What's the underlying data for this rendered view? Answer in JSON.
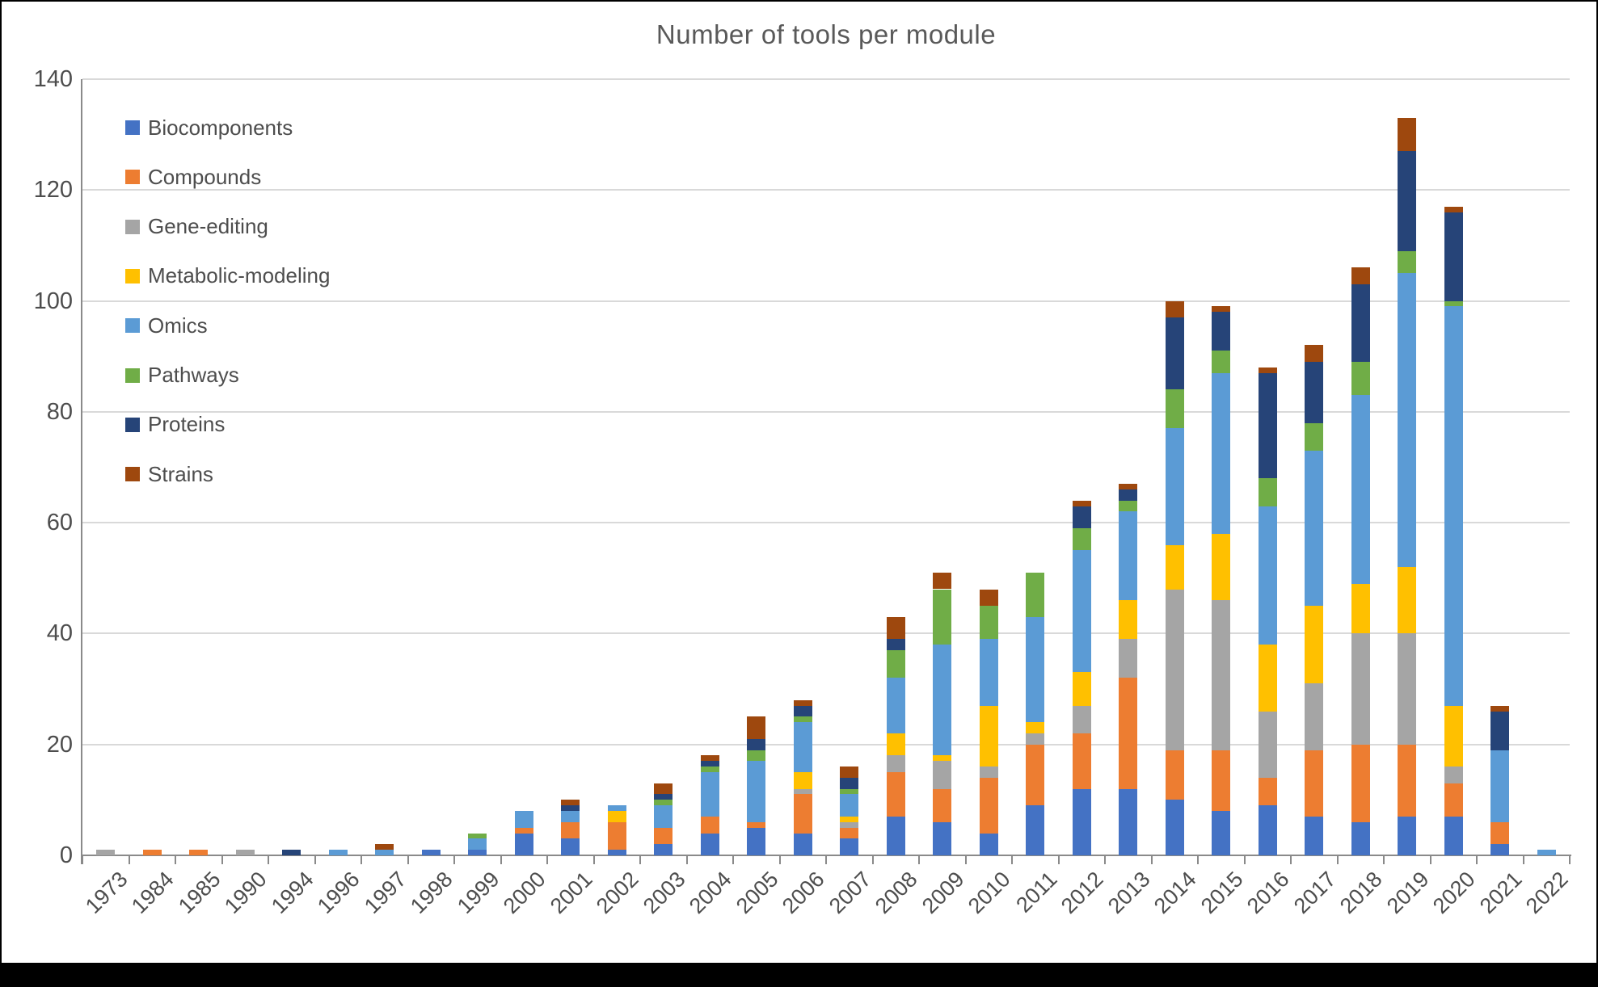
{
  "chart_data": {
    "type": "bar",
    "stacked": true,
    "title": "Number of tools per module",
    "categories": [
      "1973",
      "1984",
      "1985",
      "1990",
      "1994",
      "1996",
      "1997",
      "1998",
      "1999",
      "2000",
      "2001",
      "2002",
      "2003",
      "2004",
      "2005",
      "2006",
      "2007",
      "2008",
      "2009",
      "2010",
      "2011",
      "2012",
      "2013",
      "2014",
      "2015",
      "2016",
      "2017",
      "2018",
      "2019",
      "2020",
      "2021",
      "2022"
    ],
    "series": [
      {
        "name": "Biocomponents",
        "color": "#4472C4",
        "values": [
          0,
          0,
          0,
          0,
          0,
          0,
          0,
          1,
          1,
          4,
          3,
          1,
          2,
          4,
          5,
          4,
          3,
          7,
          6,
          4,
          9,
          12,
          12,
          10,
          8,
          9,
          7,
          6,
          7,
          7,
          2,
          0
        ]
      },
      {
        "name": "Compounds",
        "color": "#ED7D31",
        "values": [
          0,
          1,
          1,
          0,
          0,
          0,
          0,
          0,
          0,
          1,
          3,
          5,
          3,
          3,
          1,
          7,
          2,
          8,
          6,
          10,
          11,
          10,
          20,
          9,
          11,
          5,
          12,
          14,
          13,
          6,
          4,
          0
        ]
      },
      {
        "name": "Gene-editing",
        "color": "#A5A5A5",
        "values": [
          1,
          0,
          0,
          1,
          0,
          0,
          0,
          0,
          0,
          0,
          0,
          0,
          0,
          0,
          0,
          1,
          1,
          3,
          5,
          2,
          2,
          5,
          7,
          29,
          27,
          12,
          12,
          20,
          20,
          3,
          0,
          0
        ]
      },
      {
        "name": "Metabolic-modeling",
        "color": "#FFC000",
        "values": [
          0,
          0,
          0,
          0,
          0,
          0,
          0,
          0,
          0,
          0,
          0,
          2,
          0,
          0,
          0,
          3,
          1,
          4,
          1,
          11,
          2,
          6,
          7,
          8,
          12,
          12,
          14,
          9,
          12,
          11,
          0,
          0
        ]
      },
      {
        "name": "Omics",
        "color": "#5B9BD5",
        "values": [
          0,
          0,
          0,
          0,
          0,
          1,
          1,
          0,
          2,
          3,
          2,
          1,
          4,
          8,
          11,
          9,
          4,
          10,
          20,
          12,
          19,
          22,
          16,
          21,
          29,
          25,
          28,
          34,
          53,
          72,
          13,
          1
        ]
      },
      {
        "name": "Pathways",
        "color": "#70AD47",
        "values": [
          0,
          0,
          0,
          0,
          0,
          0,
          0,
          0,
          1,
          0,
          0,
          0,
          1,
          1,
          2,
          1,
          1,
          5,
          10,
          6,
          8,
          4,
          2,
          7,
          4,
          5,
          5,
          6,
          4,
          1,
          0,
          0
        ]
      },
      {
        "name": "Proteins",
        "color": "#264478",
        "values": [
          0,
          0,
          0,
          0,
          1,
          0,
          0,
          0,
          0,
          0,
          1,
          0,
          1,
          1,
          2,
          2,
          2,
          2,
          0,
          0,
          0,
          4,
          2,
          13,
          7,
          19,
          11,
          14,
          18,
          16,
          7,
          0
        ]
      },
      {
        "name": "Strains",
        "color": "#9E480E",
        "values": [
          0,
          0,
          0,
          0,
          0,
          0,
          1,
          0,
          0,
          0,
          1,
          0,
          2,
          1,
          4,
          1,
          2,
          4,
          3,
          3,
          0,
          1,
          1,
          3,
          1,
          1,
          3,
          3,
          6,
          1,
          1,
          0
        ]
      }
    ],
    "ylim": [
      0,
      140
    ],
    "ytick_step": 20,
    "ytick_labels": [
      "0",
      "20",
      "40",
      "60",
      "80",
      "100",
      "120",
      "140"
    ],
    "grid": true,
    "legend_position": "top-left-inside",
    "legend_entries": [
      "Biocomponents",
      "Compounds",
      "Gene-editing",
      "Metabolic-modeling",
      "Omics",
      "Pathways",
      "Proteins",
      "Strains"
    ]
  }
}
